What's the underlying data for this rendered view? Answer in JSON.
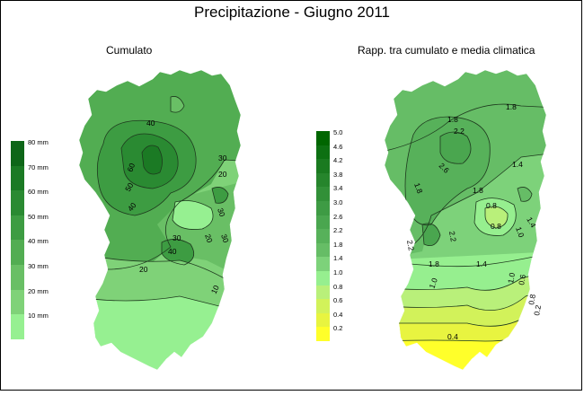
{
  "title": "Precipitazione - Giugno 2011",
  "maps": [
    {
      "subtitle": "Cumulato",
      "legend": [
        {
          "label": "80 mm",
          "color": "#0e6618"
        },
        {
          "label": "70 mm",
          "color": "#1b7a24"
        },
        {
          "label": "60 mm",
          "color": "#2a8a32"
        },
        {
          "label": "50 mm",
          "color": "#3d9c42"
        },
        {
          "label": "40 mm",
          "color": "#52ad52"
        },
        {
          "label": "30 mm",
          "color": "#69bf65"
        },
        {
          "label": "20 mm",
          "color": "#7fd278"
        },
        {
          "label": "10 mm",
          "color": "#96f091"
        }
      ],
      "contour_labels": [
        "10",
        "20",
        "30",
        "40",
        "50",
        "60"
      ]
    },
    {
      "subtitle": "Rapp. tra cumulato e media climatica",
      "legend": [
        {
          "label": "5.0",
          "color": "#006600"
        },
        {
          "label": "4.6",
          "color": "#0d7012"
        },
        {
          "label": "4.2",
          "color": "#1a7a20"
        },
        {
          "label": "3.8",
          "color": "#26852c"
        },
        {
          "label": "3.4",
          "color": "#329038"
        },
        {
          "label": "3.0",
          "color": "#3e9b44"
        },
        {
          "label": "2.6",
          "color": "#4aa64f"
        },
        {
          "label": "2.2",
          "color": "#57b15a"
        },
        {
          "label": "1.8",
          "color": "#66bd66"
        },
        {
          "label": "1.4",
          "color": "#7dd27a"
        },
        {
          "label": "1.0",
          "color": "#96ef8f"
        },
        {
          "label": "0.8",
          "color": "#b9f07a"
        },
        {
          "label": "0.6",
          "color": "#d2f25a"
        },
        {
          "label": "0.4",
          "color": "#e8f440"
        },
        {
          "label": "0.2",
          "color": "#ffff2a"
        }
      ],
      "contour_labels": [
        "0.2",
        "0.4",
        "0.6",
        "0.8",
        "1.0",
        "1.4",
        "1.8",
        "2.2",
        "2.6"
      ]
    }
  ]
}
